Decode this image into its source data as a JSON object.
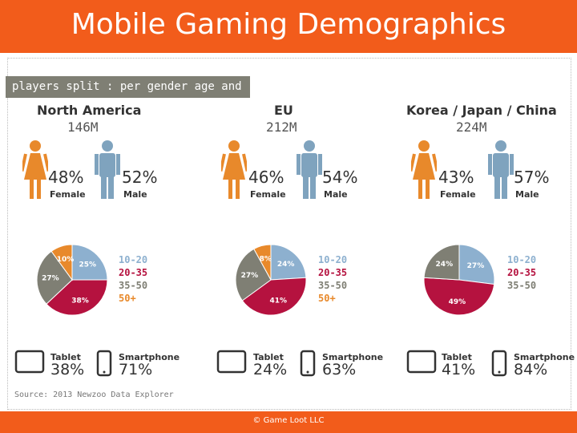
{
  "slide": {
    "title": "Mobile Gaming Demographics",
    "footer": "© Game Loot LLC",
    "banner": "players split : per gender age and device",
    "source": "Source: 2013 Newzoo Data Explorer"
  },
  "colors": {
    "accent": "#f25c1b",
    "female": "#e8892b",
    "male": "#7fa3be",
    "age_10_20": "#8db0cf",
    "age_20_35": "#b5123f",
    "age_35_50": "#7f7f74",
    "age_50_plus": "#e8892b"
  },
  "chart_data": [
    {
      "type": "pie",
      "region": "North America",
      "total": "146M",
      "gender": {
        "female_label": "Female",
        "male_label": "Male",
        "female": "48%",
        "male": "52%"
      },
      "categories": [
        "10-20",
        "20-35",
        "35-50",
        "50+"
      ],
      "values": [
        25,
        38,
        27,
        10
      ],
      "value_labels": [
        "25%",
        "38%",
        "27%",
        "10%"
      ],
      "devices": [
        {
          "label": "Tablet",
          "value": "38%"
        },
        {
          "label": "Smartphone",
          "value": "71%"
        }
      ]
    },
    {
      "type": "pie",
      "region": "EU",
      "total": "212M",
      "gender": {
        "female_label": "Female",
        "male_label": "Male",
        "female": "46%",
        "male": "54%"
      },
      "categories": [
        "10-20",
        "20-35",
        "35-50",
        "50+"
      ],
      "values": [
        24,
        41,
        27,
        8
      ],
      "value_labels": [
        "24%",
        "41%",
        "27%",
        "8%"
      ],
      "devices": [
        {
          "label": "Tablet",
          "value": "24%"
        },
        {
          "label": "Smartphone",
          "value": "63%"
        }
      ]
    },
    {
      "type": "pie",
      "region": "Korea / Japan / China",
      "total": "224M",
      "gender": {
        "female_label": "Female",
        "male_label": "Male",
        "female": "43%",
        "male": "57%"
      },
      "categories": [
        "10-20",
        "20-35",
        "35-50"
      ],
      "values": [
        27,
        49,
        24
      ],
      "value_labels": [
        "27%",
        "49%",
        "24%"
      ],
      "devices": [
        {
          "label": "Tablet",
          "value": "41%"
        },
        {
          "label": "Smartphone",
          "value": "84%"
        }
      ]
    }
  ]
}
